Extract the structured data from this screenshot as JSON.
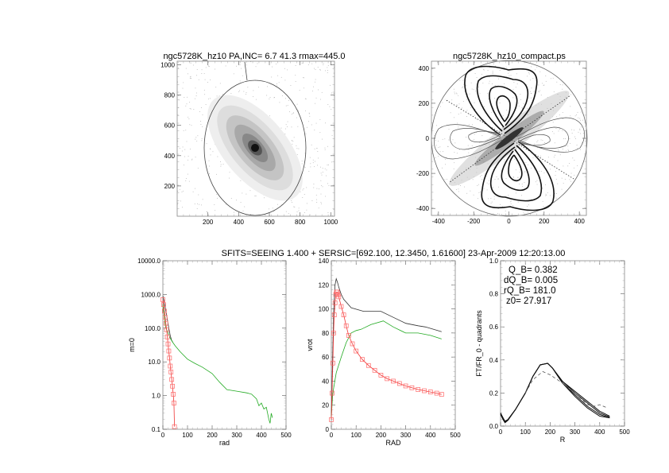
{
  "figure_header": "SFITS=SEEING 1.400 + SERSIC=[692.100, 12.3450, 1.61600]  23-Apr-2009 12:20:13.00",
  "colors": {
    "total": "#333333",
    "disk": "#22aa22",
    "bulge": "#ee3333",
    "bulge_marker": "#ff6666"
  },
  "chart_data": [
    {
      "id": "image",
      "type": "heatmap",
      "title": "ngc5728K_hz10 PA,INC=  6.7 41.3 rmax=445.0",
      "xlim": [
        0,
        1024
      ],
      "ylim": [
        0,
        1024
      ],
      "xticks": [
        200,
        400,
        600,
        800,
        1000
      ],
      "yticks": [
        200,
        400,
        600,
        800,
        1000
      ],
      "ellipse": {
        "pa_deg": 6.7,
        "inc_deg": 41.3,
        "rmax": 445.0
      },
      "colormap": "grayscale-inverted"
    },
    {
      "id": "contour",
      "type": "heatmap",
      "title": "ngc5728K_hz10_compact.ps",
      "xlim": [
        -440,
        440
      ],
      "ylim": [
        -440,
        440
      ],
      "xticks": [
        -400,
        -200,
        0,
        200,
        400
      ],
      "yticks": [
        -400,
        -200,
        0,
        200,
        400
      ],
      "rmax": 445.0
    },
    {
      "id": "density",
      "type": "line",
      "xlabel": "rad",
      "ylabel": "m=0",
      "xlim": [
        0,
        500
      ],
      "ylim": [
        0.1,
        10000
      ],
      "yscale": "log",
      "xticks": [
        0,
        100,
        200,
        300,
        400,
        500
      ],
      "yticks": [
        0.1,
        1.0,
        10.0,
        100.0,
        1000.0,
        10000.0
      ],
      "ytick_labels": [
        "0.1",
        "1.0",
        "10.0",
        "100.0",
        "1000.0",
        "10000.0"
      ],
      "series": [
        {
          "role": "total",
          "color": "#333333",
          "x": [
            0,
            5,
            10,
            15,
            20,
            25,
            30,
            35,
            40
          ],
          "y": [
            900,
            600,
            400,
            250,
            150,
            90,
            60,
            45,
            38
          ]
        },
        {
          "role": "disk",
          "color": "#22aa22",
          "x": [
            0,
            5,
            10,
            15,
            20,
            30,
            40,
            50,
            70,
            100,
            130,
            160,
            200,
            230,
            260,
            300,
            340,
            360,
            380,
            390,
            400,
            410,
            420,
            430,
            435,
            440,
            445
          ],
          "y": [
            500,
            250,
            120,
            90,
            75,
            50,
            38,
            30,
            20,
            12,
            9,
            7,
            4.5,
            2.5,
            1.5,
            1.35,
            1.2,
            1.1,
            0.8,
            0.5,
            0.6,
            0.4,
            0.45,
            0.2,
            0.15,
            0.3,
            0.22
          ]
        },
        {
          "role": "bulge",
          "color": "#ee3333",
          "marker": "square",
          "x": [
            0,
            3,
            6,
            9,
            12,
            15,
            18,
            21,
            24,
            27,
            30,
            33,
            36,
            39,
            42,
            45,
            47
          ],
          "y": [
            700,
            500,
            320,
            210,
            140,
            90,
            55,
            34,
            21,
            13,
            7.5,
            5,
            3,
            1.9,
            1.1,
            0.6,
            0.12
          ]
        }
      ]
    },
    {
      "id": "rotation",
      "type": "line",
      "xlabel": "RAD",
      "ylabel": "vrot",
      "xlim": [
        0,
        500
      ],
      "ylim": [
        0,
        140
      ],
      "xticks": [
        0,
        100,
        200,
        300,
        400,
        500
      ],
      "yticks": [
        0,
        20,
        40,
        60,
        80,
        100,
        120,
        140
      ],
      "series": [
        {
          "role": "total",
          "color": "#333333",
          "x": [
            0,
            5,
            10,
            15,
            20,
            25,
            30,
            40,
            50,
            80,
            130,
            200,
            250,
            300,
            350,
            380,
            445
          ],
          "y": [
            10,
            60,
            100,
            120,
            125,
            122,
            118,
            112,
            108,
            101,
            98,
            98,
            93,
            88,
            86,
            85,
            81
          ]
        },
        {
          "role": "disk",
          "color": "#22aa22",
          "x": [
            0,
            5,
            10,
            20,
            40,
            60,
            80,
            100,
            120,
            160,
            210,
            250,
            300,
            350,
            400,
            445
          ],
          "y": [
            10,
            28,
            35,
            47,
            60,
            72,
            80,
            82,
            83,
            87,
            90,
            85,
            80,
            80,
            78,
            75
          ]
        },
        {
          "role": "bulge",
          "color": "#ee3333",
          "marker": "square",
          "x": [
            0,
            3,
            6,
            9,
            12,
            15,
            18,
            21,
            24,
            27,
            30,
            40,
            50,
            60,
            70,
            85,
            100,
            125,
            150,
            175,
            200,
            225,
            250,
            275,
            300,
            325,
            350,
            375,
            400,
            425,
            445
          ],
          "y": [
            8,
            30,
            55,
            80,
            95,
            105,
            112,
            114,
            114,
            112,
            110,
            102,
            95,
            86,
            78,
            71,
            65,
            58,
            53,
            49,
            45,
            42,
            40,
            38,
            36,
            34.5,
            33,
            32,
            31,
            30,
            29
          ]
        }
      ]
    },
    {
      "id": "torque",
      "type": "line",
      "xlabel": "R",
      "ylabel": "FT/FR_0 - quadrants",
      "xlim": [
        0,
        500
      ],
      "ylim": [
        0,
        1.0
      ],
      "xticks": [
        0,
        100,
        200,
        300,
        400,
        500
      ],
      "yticks": [
        0.0,
        0.2,
        0.4,
        0.6,
        0.8,
        1.0
      ],
      "ytick_labels": [
        "0.0",
        "0.2",
        "0.4",
        "0.6",
        "0.8",
        "1.0"
      ],
      "annotations": [
        "Q_B=  0.382",
        "dQ_B=  0.005",
        "rQ_B=  181.0",
        "z0= 27.917"
      ],
      "series": [
        {
          "style": "solid",
          "x": [
            0,
            10,
            18,
            30,
            60,
            100,
            130,
            160,
            190,
            210,
            250,
            300,
            350,
            400,
            440
          ],
          "y": [
            0.08,
            0.05,
            0.025,
            0.04,
            0.1,
            0.2,
            0.3,
            0.37,
            0.38,
            0.35,
            0.27,
            0.21,
            0.15,
            0.09,
            0.06
          ]
        },
        {
          "style": "solid",
          "x": [
            0,
            10,
            18,
            30,
            60,
            100,
            130,
            160,
            190,
            210,
            250,
            300,
            350,
            400,
            440
          ],
          "y": [
            0.075,
            0.05,
            0.03,
            0.04,
            0.1,
            0.2,
            0.3,
            0.37,
            0.38,
            0.35,
            0.27,
            0.2,
            0.14,
            0.08,
            0.055
          ]
        },
        {
          "style": "solid",
          "x": [
            0,
            10,
            18,
            30,
            60,
            100,
            130,
            160,
            190,
            210,
            250,
            300,
            350,
            400,
            440
          ],
          "y": [
            0.07,
            0.045,
            0.025,
            0.04,
            0.1,
            0.2,
            0.3,
            0.37,
            0.38,
            0.35,
            0.26,
            0.19,
            0.12,
            0.07,
            0.05
          ]
        },
        {
          "style": "solid",
          "x": [
            0,
            10,
            18,
            30,
            60,
            100,
            130,
            160,
            190,
            210,
            250,
            300,
            350,
            400,
            440
          ],
          "y": [
            0.07,
            0.04,
            0.02,
            0.035,
            0.1,
            0.2,
            0.3,
            0.37,
            0.38,
            0.35,
            0.26,
            0.18,
            0.11,
            0.06,
            0.05
          ]
        },
        {
          "style": "dashed",
          "x": [
            100,
            130,
            170,
            200,
            250,
            300,
            350,
            380,
            400,
            430
          ],
          "y": [
            0.2,
            0.28,
            0.33,
            0.31,
            0.26,
            0.2,
            0.13,
            0.12,
            0.13,
            0.11
          ]
        }
      ]
    }
  ]
}
